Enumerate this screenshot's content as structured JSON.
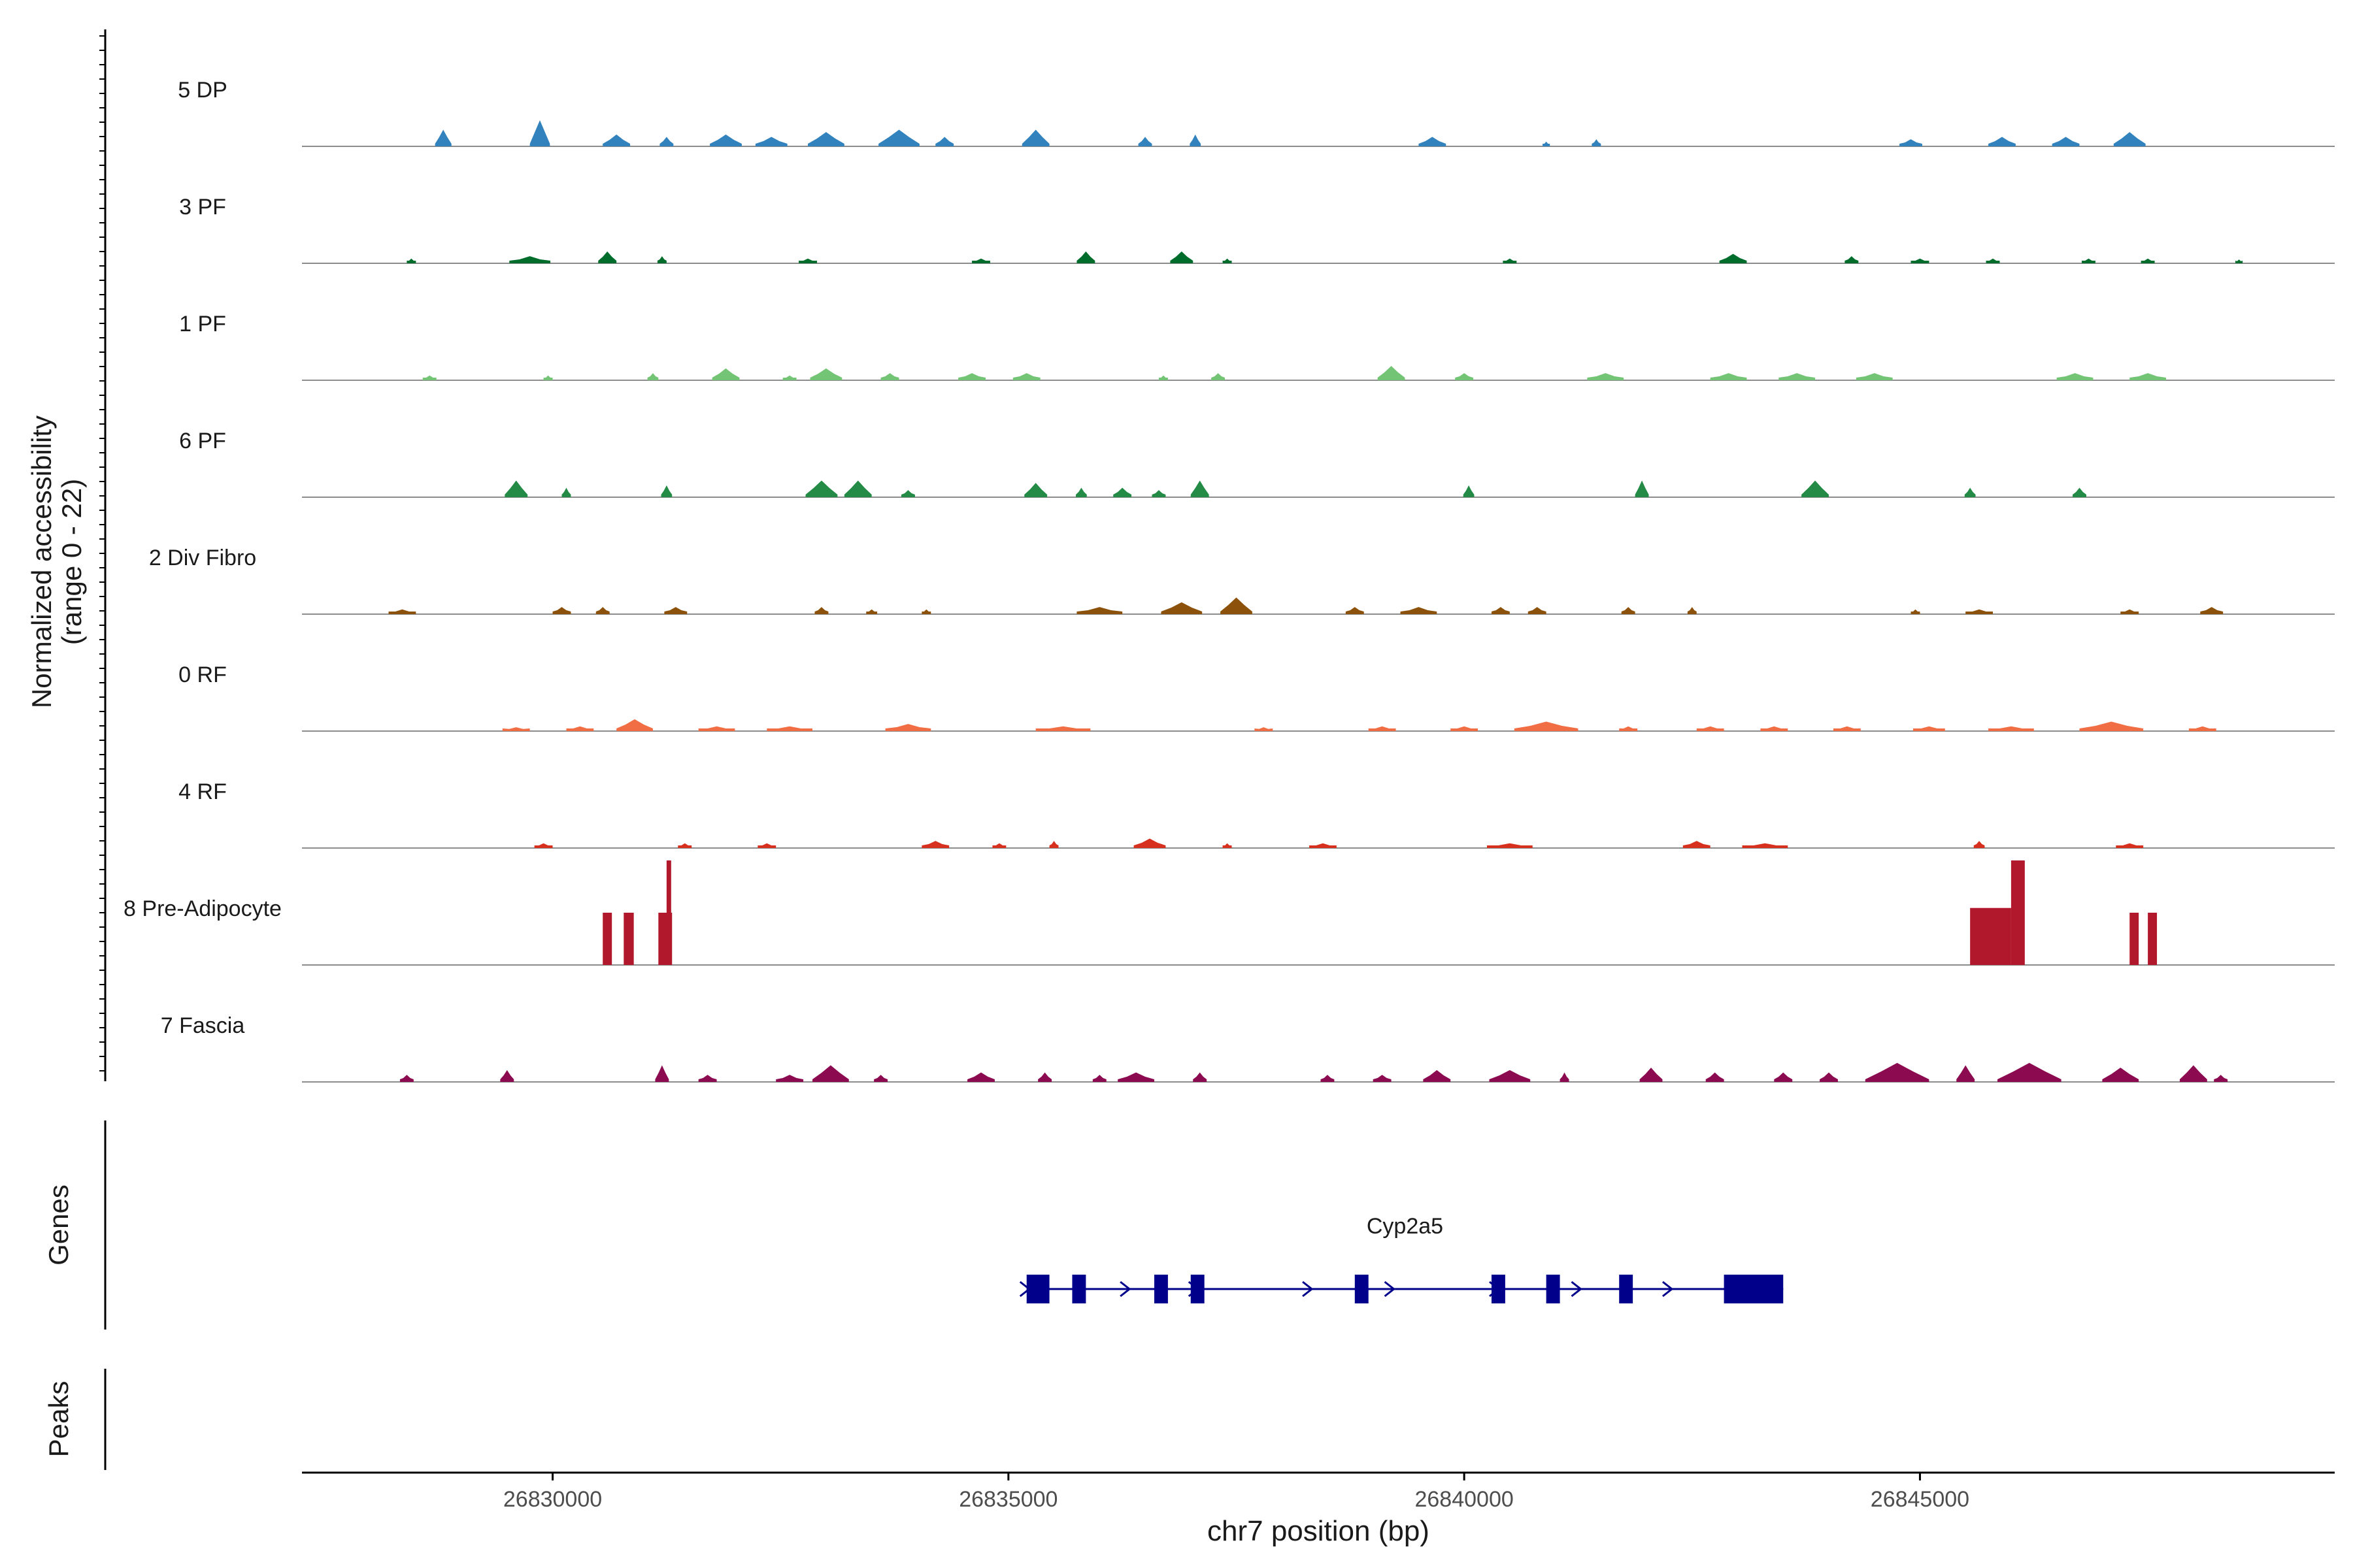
{
  "chart_data": {
    "type": "coverage",
    "ylabel_lines": [
      "Normalized accessibility",
      "(range 0 - 22)"
    ],
    "y_range": [
      0,
      22
    ],
    "xlabel": "chr7 position (bp)",
    "x_range": [
      26827250,
      26849550
    ],
    "x_ticks": [
      26830000,
      26835000,
      26840000,
      26845000
    ],
    "x_tick_labels": [
      "26830000",
      "26835000",
      "26840000",
      "26845000"
    ],
    "genes_label": "Genes",
    "peaks_label": "Peaks",
    "tracks": [
      {
        "name": "5 DP",
        "color": "#3182bd",
        "peaks": [
          [
            26828800,
            3.5,
            180
          ],
          [
            26829860,
            5.5,
            220
          ],
          [
            26830700,
            2.5,
            300
          ],
          [
            26831250,
            2,
            150
          ],
          [
            26831900,
            2.5,
            350
          ],
          [
            26832400,
            2,
            350
          ],
          [
            26833000,
            3,
            400
          ],
          [
            26833800,
            3.5,
            450
          ],
          [
            26834300,
            2,
            200
          ],
          [
            26835300,
            3.5,
            300
          ],
          [
            26836500,
            2,
            150
          ],
          [
            26837050,
            2.5,
            120
          ],
          [
            26839650,
            2,
            300
          ],
          [
            26840900,
            1,
            80
          ],
          [
            26841450,
            1.5,
            100
          ],
          [
            26844900,
            1.5,
            250
          ],
          [
            26845900,
            2,
            300
          ],
          [
            26846600,
            2,
            300
          ],
          [
            26847300,
            3,
            350
          ]
        ]
      },
      {
        "name": "3 PF",
        "color": "#006d2c",
        "peaks": [
          [
            26828450,
            1,
            100
          ],
          [
            26829750,
            1.5,
            450
          ],
          [
            26830600,
            2.5,
            200
          ],
          [
            26831200,
            1.5,
            100
          ],
          [
            26832800,
            1,
            200
          ],
          [
            26834700,
            1,
            200
          ],
          [
            26835850,
            2.5,
            200
          ],
          [
            26836900,
            2.5,
            250
          ],
          [
            26837400,
            1,
            100
          ],
          [
            26840500,
            1,
            150
          ],
          [
            26842950,
            2,
            300
          ],
          [
            26844250,
            1.5,
            150
          ],
          [
            26845000,
            1,
            200
          ],
          [
            26845800,
            1,
            150
          ],
          [
            26846850,
            1,
            150
          ],
          [
            26847500,
            1,
            150
          ],
          [
            26848500,
            0.8,
            80
          ]
        ]
      },
      {
        "name": "1 PF",
        "color": "#74c476",
        "peaks": [
          [
            26828650,
            1,
            150
          ],
          [
            26829950,
            1,
            100
          ],
          [
            26831100,
            1.5,
            120
          ],
          [
            26831900,
            2.5,
            300
          ],
          [
            26832600,
            1,
            150
          ],
          [
            26833000,
            2.5,
            350
          ],
          [
            26833700,
            1.5,
            200
          ],
          [
            26834600,
            1.5,
            300
          ],
          [
            26835200,
            1.5,
            300
          ],
          [
            26836700,
            1,
            100
          ],
          [
            26837300,
            1.5,
            150
          ],
          [
            26839200,
            3,
            300
          ],
          [
            26840000,
            1.5,
            200
          ],
          [
            26841550,
            1.5,
            400
          ],
          [
            26842900,
            1.5,
            400
          ],
          [
            26843650,
            1.5,
            400
          ],
          [
            26844500,
            1.5,
            400
          ],
          [
            26846700,
            1.5,
            400
          ],
          [
            26847500,
            1.5,
            400
          ]
        ]
      },
      {
        "name": "6 PF",
        "color": "#238b45",
        "peaks": [
          [
            26829600,
            3.5,
            250
          ],
          [
            26830150,
            2,
            100
          ],
          [
            26831250,
            2.5,
            120
          ],
          [
            26832950,
            3.5,
            350
          ],
          [
            26833350,
            3.5,
            300
          ],
          [
            26833900,
            1.5,
            150
          ],
          [
            26835300,
            3,
            250
          ],
          [
            26835800,
            2,
            120
          ],
          [
            26836250,
            2,
            200
          ],
          [
            26836650,
            1.5,
            150
          ],
          [
            26837100,
            3.5,
            200
          ],
          [
            26840050,
            2.5,
            120
          ],
          [
            26841950,
            3.5,
            150
          ],
          [
            26843850,
            3.5,
            300
          ],
          [
            26845550,
            2,
            120
          ],
          [
            26846750,
            2,
            150
          ]
        ]
      },
      {
        "name": "2 Div Fibro",
        "color": "#8c510a",
        "peaks": [
          [
            26828350,
            1,
            300
          ],
          [
            26830100,
            1.5,
            200
          ],
          [
            26830550,
            1.5,
            150
          ],
          [
            26831350,
            1.5,
            250
          ],
          [
            26832950,
            1.5,
            150
          ],
          [
            26833500,
            1,
            120
          ],
          [
            26834100,
            1,
            100
          ],
          [
            26836000,
            1.5,
            500
          ],
          [
            26836900,
            2.5,
            450
          ],
          [
            26837500,
            3.5,
            350
          ],
          [
            26838800,
            1.5,
            200
          ],
          [
            26839500,
            1.5,
            400
          ],
          [
            26840400,
            1.5,
            200
          ],
          [
            26840800,
            1.5,
            200
          ],
          [
            26841800,
            1.5,
            150
          ],
          [
            26842500,
            1.5,
            100
          ],
          [
            26844950,
            1,
            100
          ],
          [
            26845650,
            1,
            300
          ],
          [
            26847300,
            1,
            200
          ],
          [
            26848200,
            1.5,
            250
          ]
        ]
      },
      {
        "name": "0 RF",
        "color": "#f16d43",
        "peaks": [
          [
            26829600,
            0.8,
            300
          ],
          [
            26830300,
            1,
            300
          ],
          [
            26830900,
            2.5,
            400
          ],
          [
            26831800,
            1,
            400
          ],
          [
            26832600,
            1,
            500
          ],
          [
            26833900,
            1.5,
            500
          ],
          [
            26835600,
            1,
            600
          ],
          [
            26837800,
            0.8,
            200
          ],
          [
            26839100,
            1,
            300
          ],
          [
            26840000,
            1,
            300
          ],
          [
            26840900,
            2,
            700
          ],
          [
            26841800,
            1,
            200
          ],
          [
            26842700,
            1,
            300
          ],
          [
            26843400,
            1,
            300
          ],
          [
            26844200,
            1,
            300
          ],
          [
            26845100,
            1,
            350
          ],
          [
            26846000,
            1,
            500
          ],
          [
            26847100,
            2,
            700
          ],
          [
            26848100,
            1,
            300
          ]
        ]
      },
      {
        "name": "4 RF",
        "color": "#d7301f",
        "peaks": [
          [
            26829900,
            1,
            200
          ],
          [
            26831450,
            1,
            150
          ],
          [
            26832350,
            1,
            200
          ],
          [
            26834200,
            1.5,
            300
          ],
          [
            26834900,
            1,
            150
          ],
          [
            26835500,
            1.5,
            100
          ],
          [
            26836550,
            2,
            350
          ],
          [
            26837400,
            1,
            100
          ],
          [
            26838450,
            1,
            300
          ],
          [
            26840500,
            1,
            500
          ],
          [
            26842550,
            1.5,
            300
          ],
          [
            26843300,
            1,
            500
          ],
          [
            26845650,
            1.5,
            120
          ],
          [
            26847300,
            1,
            300
          ]
        ]
      },
      {
        "name": "8 Pre-Adipocyte",
        "color": "#b2182b",
        "bars": [
          [
            26830550,
            0,
            100,
            11
          ],
          [
            26830700,
            0,
            100,
            0
          ],
          [
            26830780,
            0,
            110,
            11
          ],
          [
            26831160,
            0,
            150,
            11
          ],
          [
            26831250,
            0,
            50,
            22
          ],
          [
            26845550,
            0,
            300,
            12
          ],
          [
            26845850,
            0,
            150,
            12
          ],
          [
            26846000,
            0,
            150,
            22
          ],
          [
            26847300,
            0,
            100,
            11
          ],
          [
            26847500,
            0,
            100,
            11
          ]
        ]
      },
      {
        "name": "7 Fascia",
        "color": "#8b0a50",
        "peaks": [
          [
            26828400,
            1.5,
            150
          ],
          [
            26829500,
            2.5,
            150
          ],
          [
            26831200,
            3.5,
            150
          ],
          [
            26831700,
            1.5,
            200
          ],
          [
            26832600,
            1.5,
            300
          ],
          [
            26833050,
            3.5,
            400
          ],
          [
            26833600,
            1.5,
            150
          ],
          [
            26834700,
            2,
            300
          ],
          [
            26835400,
            2,
            150
          ],
          [
            26836000,
            1.5,
            150
          ],
          [
            26836400,
            2,
            400
          ],
          [
            26837100,
            2,
            150
          ],
          [
            26838500,
            1.5,
            150
          ],
          [
            26839100,
            1.5,
            200
          ],
          [
            26839700,
            2.5,
            300
          ],
          [
            26840500,
            2.5,
            450
          ],
          [
            26841100,
            2,
            100
          ],
          [
            26842050,
            3,
            250
          ],
          [
            26842750,
            2,
            200
          ],
          [
            26843500,
            2,
            200
          ],
          [
            26844000,
            2,
            200
          ],
          [
            26844750,
            4,
            700
          ],
          [
            26845500,
            3.5,
            200
          ],
          [
            26846200,
            4,
            700
          ],
          [
            26847200,
            3,
            400
          ],
          [
            26848000,
            3.5,
            300
          ],
          [
            26848300,
            1.5,
            150
          ]
        ]
      }
    ],
    "gene": {
      "name": "Cyp2a5",
      "strand": "+",
      "start": 26835200,
      "end": 26843500,
      "exons": [
        [
          26835200,
          26835450
        ],
        [
          26835700,
          26835850
        ],
        [
          26836600,
          26836750
        ],
        [
          26837000,
          26837150
        ],
        [
          26838800,
          26838950
        ],
        [
          26840300,
          26840450
        ],
        [
          26840900,
          26841050
        ],
        [
          26841700,
          26841850
        ],
        [
          26842850,
          26843500
        ]
      ]
    }
  }
}
